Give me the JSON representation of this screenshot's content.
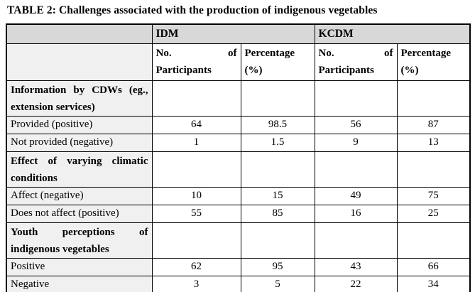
{
  "page": {
    "title": "TABLE 2: Challenges associated with the production of indigenous vegetables"
  },
  "colors": {
    "group_header_bg": "#d8d8d8",
    "label_column_bg": "#f0f0f0",
    "border": "#000000",
    "cell_bg": "#ffffff"
  },
  "table": {
    "groups": [
      "IDM",
      "KCDM"
    ],
    "sub_headers": [
      "No. of Participants",
      "Percentage (%)",
      "No. of Participants",
      "Percentage (%)"
    ],
    "rows": [
      {
        "type": "section",
        "label": "Information by CDWs (eg., extension services)",
        "values": [
          "",
          "",
          "",
          ""
        ]
      },
      {
        "type": "data",
        "label": "Provided (positive)",
        "values": [
          "64",
          "98.5",
          "56",
          "87"
        ]
      },
      {
        "type": "data",
        "label": "Not provided (negative)",
        "values": [
          "1",
          "1.5",
          "9",
          "13"
        ]
      },
      {
        "type": "section",
        "label": "Effect of varying climatic conditions",
        "values": [
          "",
          "",
          "",
          ""
        ]
      },
      {
        "type": "data",
        "label": "Affect (negative)",
        "values": [
          "10",
          "15",
          "49",
          "75"
        ]
      },
      {
        "type": "data",
        "label": "Does not affect (positive)",
        "values": [
          "55",
          "85",
          "16",
          "25"
        ]
      },
      {
        "type": "section",
        "label": "Youth perceptions of indigenous vegetables",
        "values": [
          "",
          "",
          "",
          ""
        ]
      },
      {
        "type": "data",
        "label": "Positive",
        "values": [
          "62",
          "95",
          "43",
          "66"
        ]
      },
      {
        "type": "data",
        "label": "Negative",
        "values": [
          "3",
          "5",
          "22",
          "34"
        ]
      }
    ]
  }
}
